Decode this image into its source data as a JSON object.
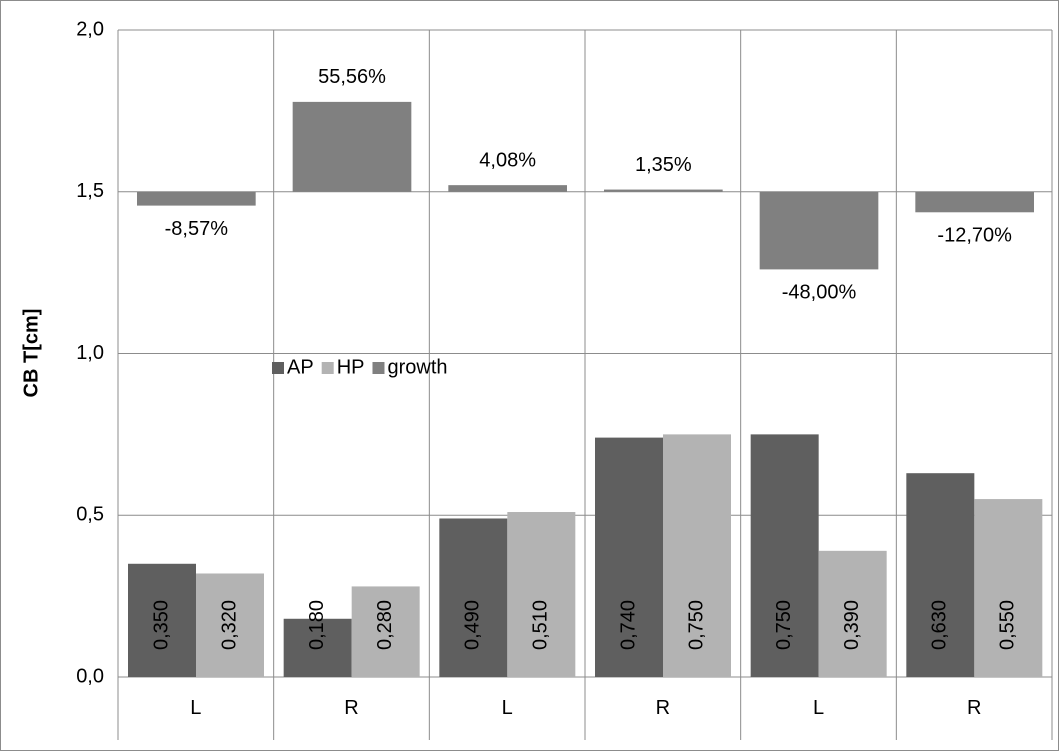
{
  "chart_data": {
    "type": "bar",
    "y_label": "CB T[cm]",
    "categories": [
      "L",
      "R",
      "L",
      "R",
      "L",
      "R"
    ],
    "series": [
      {
        "name": "AP",
        "color": "#5f5f5f",
        "values": [
          0.35,
          0.18,
          0.49,
          0.74,
          0.75,
          0.63
        ],
        "value_labels": [
          "0,350",
          "0,180",
          "0,490",
          "0,740",
          "0,750",
          "0,630"
        ]
      },
      {
        "name": "HP",
        "color": "#b3b3b3",
        "values": [
          0.32,
          0.28,
          0.51,
          0.75,
          0.39,
          0.55
        ],
        "value_labels": [
          "0,320",
          "0,280",
          "0,510",
          "0,750",
          "0,390",
          "0,550"
        ]
      },
      {
        "name": "growth",
        "color": "#808080",
        "axis": "y2",
        "values": [
          -8.57,
          55.56,
          4.08,
          1.35,
          -48.0,
          -12.7
        ],
        "value_labels": [
          "-8,57%",
          "55,56%",
          "4,08%",
          "1,35%",
          "-48,00%",
          "-12,70%"
        ]
      }
    ],
    "ylim": [
      0,
      2
    ],
    "yticks": [
      {
        "value": 0,
        "label": "0,0"
      },
      {
        "value": 0.5,
        "label": "0,5"
      },
      {
        "value": 1,
        "label": "1,0"
      },
      {
        "value": 1.5,
        "label": "1,5"
      },
      {
        "value": 2,
        "label": "2,0"
      }
    ],
    "y2lim": [
      -300,
      100
    ],
    "grid": true,
    "legend": "left"
  }
}
